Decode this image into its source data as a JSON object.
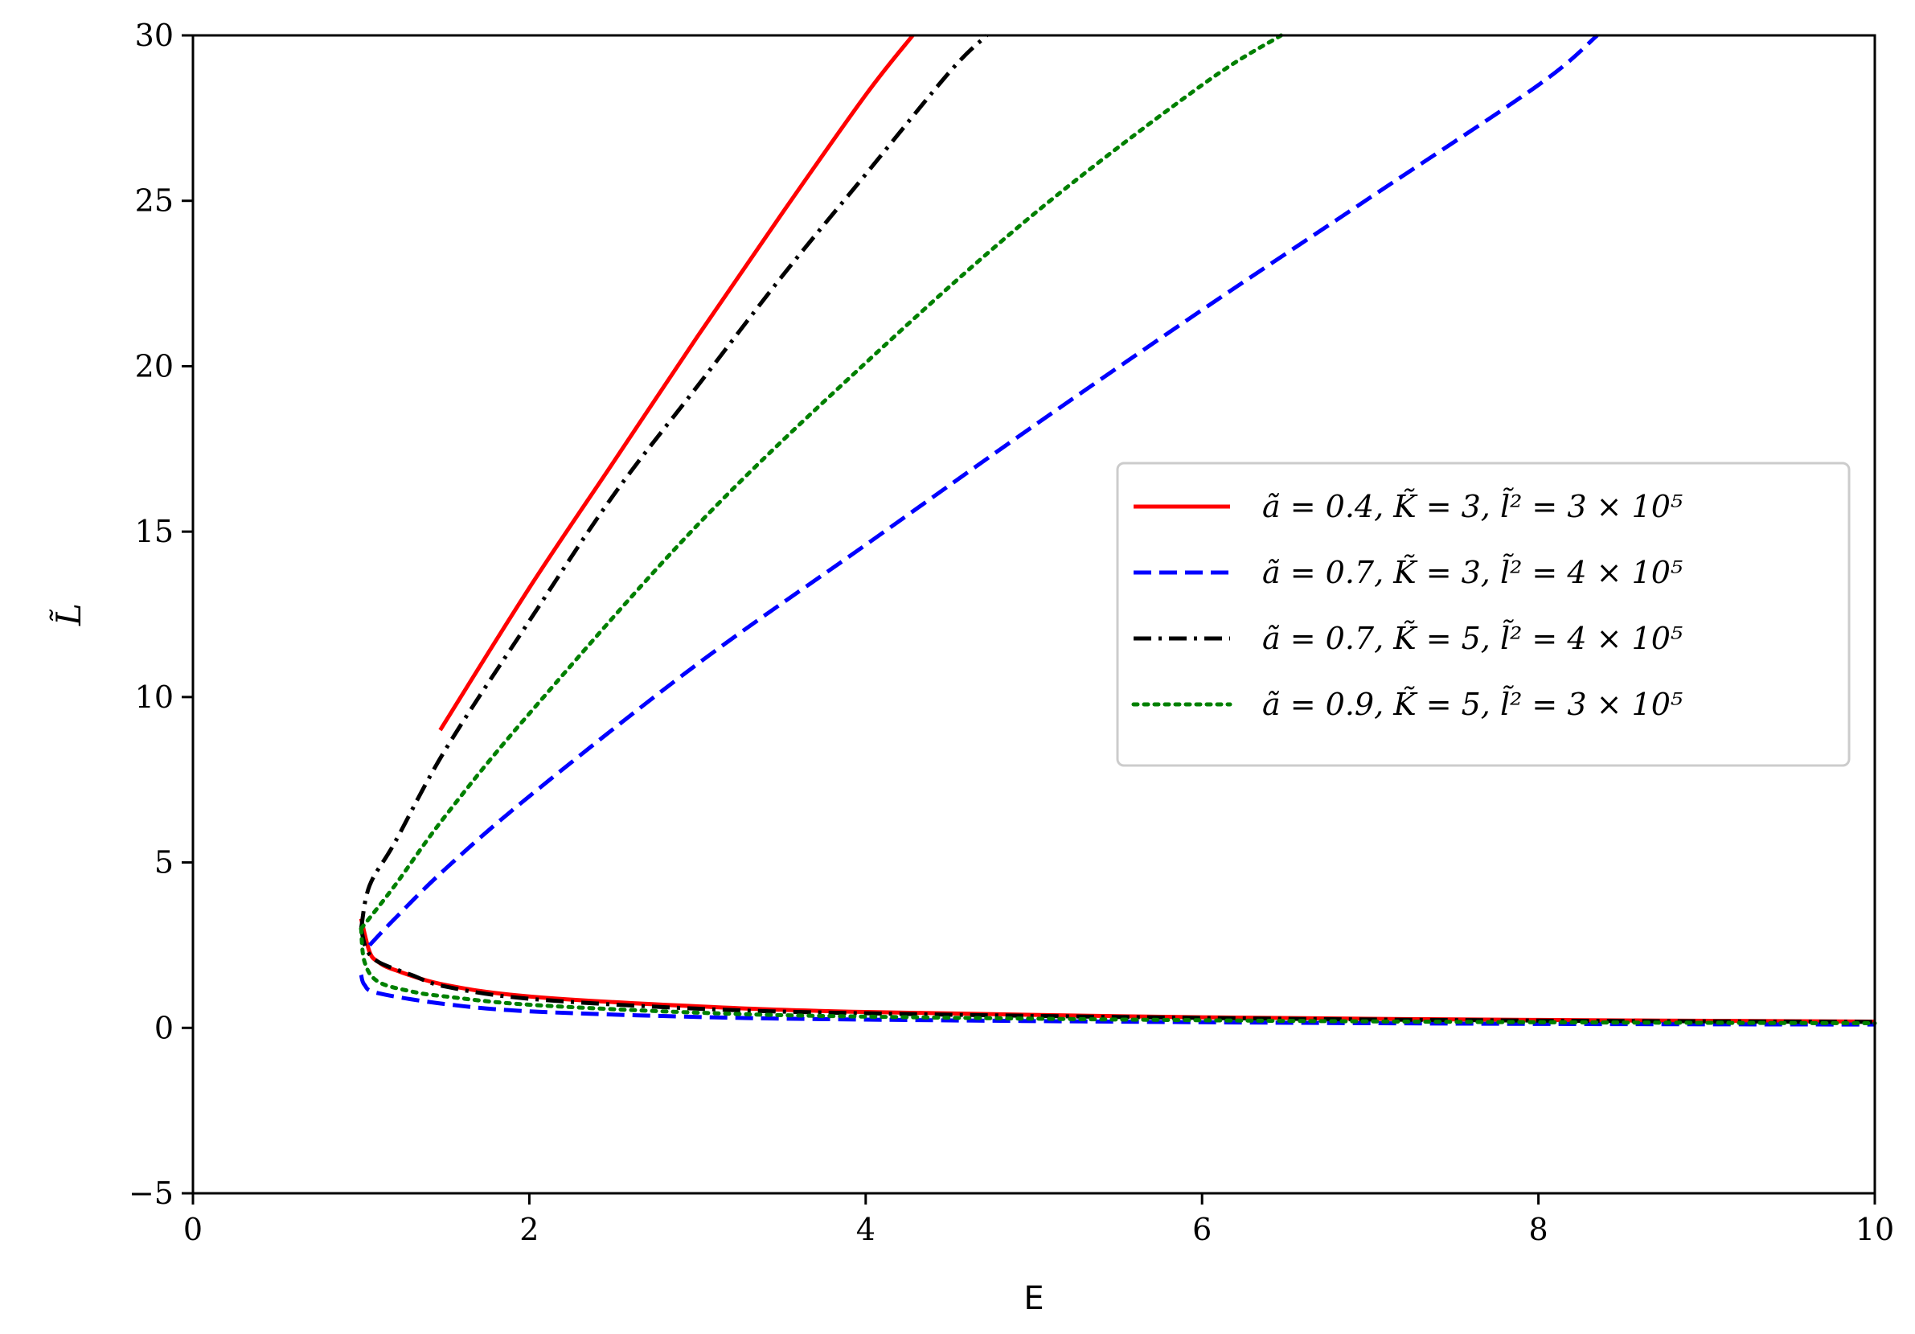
{
  "chart_data": {
    "type": "line",
    "xlabel": "E",
    "ylabel": "L̃",
    "xlim": [
      0,
      10
    ],
    "ylim": [
      -5,
      30
    ],
    "xticks": [
      0,
      2,
      4,
      6,
      8,
      10
    ],
    "yticks": [
      -5,
      0,
      5,
      10,
      15,
      20,
      25,
      30
    ],
    "xtick_labels": [
      "0",
      "2",
      "4",
      "6",
      "8",
      "10"
    ],
    "ytick_labels": [
      "−5",
      "0",
      "5",
      "10",
      "15",
      "20",
      "25",
      "30"
    ],
    "grid": false,
    "legend_position": "center-right",
    "series": [
      {
        "name": "ã = 0.4, K̃ = 3, l̃² = 3 × 10⁵",
        "color": "#ff0000",
        "dash": "solid",
        "upper": [
          [
            1.47,
            9.0
          ],
          [
            2.0,
            13.3
          ],
          [
            2.5,
            17.1
          ],
          [
            3.0,
            20.9
          ],
          [
            3.5,
            24.6
          ],
          [
            4.0,
            28.2
          ],
          [
            4.28,
            30.0
          ]
        ],
        "lower": [
          [
            1.0,
            3.3
          ],
          [
            1.05,
            2.3
          ],
          [
            1.1,
            2.0
          ],
          [
            1.2,
            1.75
          ],
          [
            1.5,
            1.3
          ],
          [
            2.0,
            0.95
          ],
          [
            3.0,
            0.65
          ],
          [
            4.0,
            0.48
          ],
          [
            6.0,
            0.32
          ],
          [
            8.0,
            0.24
          ],
          [
            10.0,
            0.19
          ]
        ]
      },
      {
        "name": "ã = 0.7, K̃ = 3, l̃² = 4 × 10⁵",
        "color": "#0000ff",
        "dash": "dashed",
        "upper": [
          [
            1.05,
            2.5
          ],
          [
            1.2,
            3.3
          ],
          [
            1.5,
            4.8
          ],
          [
            2.0,
            7.0
          ],
          [
            3.0,
            11.0
          ],
          [
            4.0,
            14.6
          ],
          [
            5.0,
            18.2
          ],
          [
            6.0,
            21.7
          ],
          [
            7.0,
            25.1
          ],
          [
            8.0,
            28.5
          ],
          [
            8.35,
            30.0
          ]
        ],
        "lower": [
          [
            1.0,
            1.6
          ],
          [
            1.02,
            1.3
          ],
          [
            1.1,
            1.05
          ],
          [
            1.5,
            0.72
          ],
          [
            2.0,
            0.5
          ],
          [
            3.0,
            0.33
          ],
          [
            4.0,
            0.25
          ],
          [
            6.0,
            0.17
          ],
          [
            8.0,
            0.12
          ],
          [
            10.0,
            0.1
          ]
        ]
      },
      {
        "name": "ã = 0.7, K̃ = 5, l̃² = 4 × 10⁵",
        "color": "#000000",
        "dash": "dashdot",
        "upper": [
          [
            1.0,
            3.0
          ],
          [
            1.05,
            4.3
          ],
          [
            1.2,
            5.6
          ],
          [
            1.5,
            8.4
          ],
          [
            2.0,
            12.3
          ],
          [
            2.5,
            16.1
          ],
          [
            3.0,
            19.4
          ],
          [
            3.5,
            22.7
          ],
          [
            4.0,
            25.8
          ],
          [
            4.5,
            28.9
          ],
          [
            4.72,
            30.0
          ]
        ],
        "lower": [
          [
            1.0,
            3.0
          ],
          [
            1.03,
            2.4
          ],
          [
            1.1,
            2.0
          ],
          [
            1.3,
            1.6
          ],
          [
            1.5,
            1.25
          ],
          [
            2.0,
            0.88
          ],
          [
            3.0,
            0.58
          ],
          [
            4.0,
            0.44
          ],
          [
            6.0,
            0.3
          ],
          [
            8.0,
            0.22
          ],
          [
            10.0,
            0.18
          ]
        ]
      },
      {
        "name": "ã = 0.9, K̃ = 5, l̃² = 3 × 10⁵",
        "color": "#008000",
        "dash": "dotted",
        "upper": [
          [
            1.0,
            3.0
          ],
          [
            1.2,
            4.3
          ],
          [
            1.5,
            6.4
          ],
          [
            2.0,
            9.5
          ],
          [
            3.0,
            15.2
          ],
          [
            4.0,
            20.1
          ],
          [
            5.0,
            24.6
          ],
          [
            6.0,
            28.5
          ],
          [
            6.47,
            30.0
          ]
        ],
        "lower": [
          [
            1.0,
            3.0
          ],
          [
            1.02,
            2.0
          ],
          [
            1.1,
            1.4
          ],
          [
            1.3,
            1.1
          ],
          [
            1.5,
            0.95
          ],
          [
            2.0,
            0.7
          ],
          [
            3.0,
            0.46
          ],
          [
            4.0,
            0.34
          ],
          [
            6.0,
            0.23
          ],
          [
            8.0,
            0.17
          ],
          [
            10.0,
            0.14
          ]
        ]
      }
    ]
  }
}
